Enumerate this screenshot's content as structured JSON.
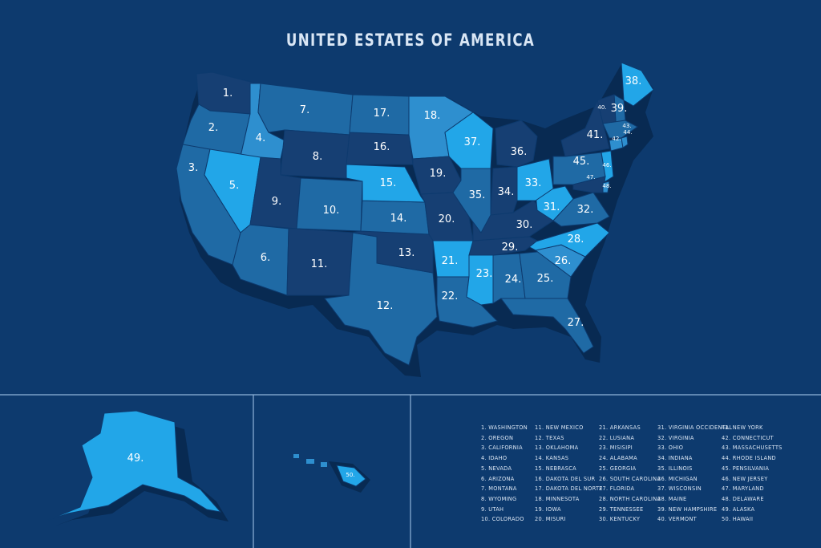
{
  "title": "UNITED ESTATES OF AMERICA",
  "colors": {
    "background": "#0d3a6e",
    "dark": "#163f73",
    "mid": "#1f6aa5",
    "light": "#2e8fcf",
    "bright": "#22a6e8",
    "shadow": "#082a52",
    "divider": "#8fb3d9"
  },
  "map_labels": [
    "1.",
    "2.",
    "3.",
    "4.",
    "5.",
    "6.",
    "7.",
    "8.",
    "9.",
    "10.",
    "11.",
    "12.",
    "13.",
    "14.",
    "15.",
    "16.",
    "17.",
    "18.",
    "19.",
    "20.",
    "21.",
    "22.",
    "23.",
    "24.",
    "25.",
    "26.",
    "27.",
    "28.",
    "29.",
    "30.",
    "31.",
    "32.",
    "33.",
    "34.",
    "35.",
    "36.",
    "37.",
    "38.",
    "39.",
    "40.",
    "41.",
    "42.",
    "43.",
    "44.",
    "45.",
    "46.",
    "47.",
    "48.",
    "49.",
    "50."
  ],
  "legend": [
    [
      "1. WASHINGTON",
      "2. OREGON",
      "3. CALIFORNIA",
      "4. IDAHO",
      "5. NEVADA",
      "6. ARIZONA",
      "7. MONTANA",
      "8. WYOMING",
      "9. UTAH",
      "10. COLORADO"
    ],
    [
      "11. NEW MEXICO",
      "12. TEXAS",
      "13. OKLAHOMA",
      "14. KANSAS",
      "15. NEBRASCA",
      "16. DAKOTA DEL SUR",
      "17. DAKOTA DEL NORTE",
      "18. MINNESOTA",
      "19. IOWA",
      "20. MISURI"
    ],
    [
      "21. ARKANSAS",
      "22. LUSIANA",
      "23. MISISIPI",
      "24. ALABAMA",
      "25. GEORGIA",
      "26. SOUTH CAROLINA",
      "27. FLORIDA",
      "28. NORTH CAROLINA",
      "29. TENNESSEE",
      "30. KENTUCKY"
    ],
    [
      "31. VIRGINIA OCCIDENTAL",
      "32. VIRGINIA",
      "33. OHIO",
      "34. INDIANA",
      "35. ILLINOIS",
      "36. MICHIGAN",
      "37. WISCONSIN",
      "38. MAINE",
      "39. NEW HAMPSHIRE",
      "40. VERMONT"
    ],
    [
      "41. NEW YORK",
      "42. CONNECTICUT",
      "43. MASSACHUSETTS",
      "44. RHODE ISLAND",
      "45. PENSILVANIA",
      "46. NEW JERSEY",
      "47. MARYLAND",
      "48. DELAWARE",
      "49. ALASKA",
      "50. HAWAII"
    ]
  ]
}
